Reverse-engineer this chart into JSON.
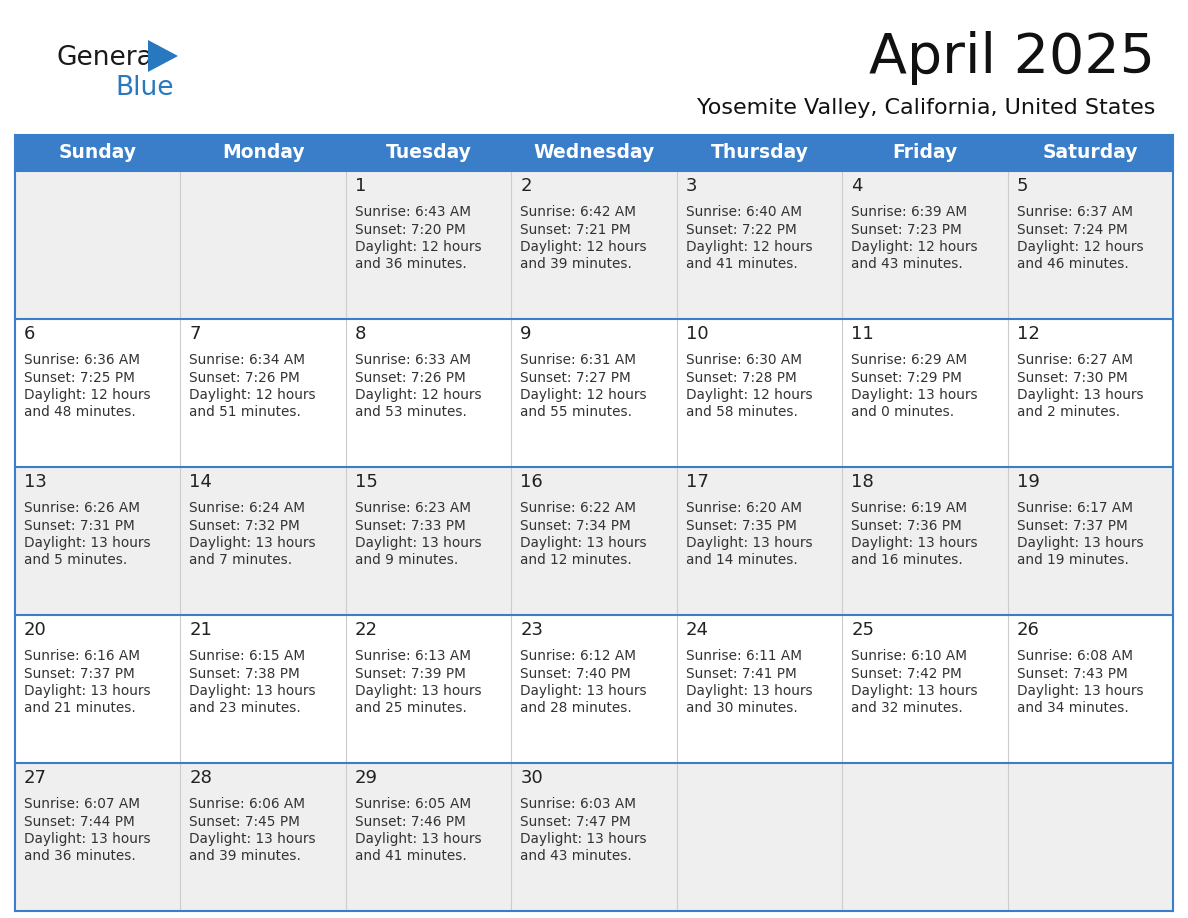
{
  "title": "April 2025",
  "subtitle": "Yosemite Valley, California, United States",
  "days_of_week": [
    "Sunday",
    "Monday",
    "Tuesday",
    "Wednesday",
    "Thursday",
    "Friday",
    "Saturday"
  ],
  "header_bg": "#3A7DC9",
  "header_text": "#FFFFFF",
  "row_bg_light": "#EFEFEF",
  "row_bg_white": "#FFFFFF",
  "day_num_color": "#222222",
  "info_color": "#333333",
  "border_color": "#3A7DC9",
  "sep_color": "#CCCCCC",
  "logo_general_color": "#1a1a1a",
  "logo_blue_color": "#2878C0",
  "logo_triangle_color": "#2878C0",
  "calendar": [
    [
      {
        "day": "",
        "sunrise": "",
        "sunset": "",
        "daylight": ""
      },
      {
        "day": "",
        "sunrise": "",
        "sunset": "",
        "daylight": ""
      },
      {
        "day": "1",
        "sunrise": "6:43 AM",
        "sunset": "7:20 PM",
        "daylight": "12 hours",
        "daylight2": "and 36 minutes."
      },
      {
        "day": "2",
        "sunrise": "6:42 AM",
        "sunset": "7:21 PM",
        "daylight": "12 hours",
        "daylight2": "and 39 minutes."
      },
      {
        "day": "3",
        "sunrise": "6:40 AM",
        "sunset": "7:22 PM",
        "daylight": "12 hours",
        "daylight2": "and 41 minutes."
      },
      {
        "day": "4",
        "sunrise": "6:39 AM",
        "sunset": "7:23 PM",
        "daylight": "12 hours",
        "daylight2": "and 43 minutes."
      },
      {
        "day": "5",
        "sunrise": "6:37 AM",
        "sunset": "7:24 PM",
        "daylight": "12 hours",
        "daylight2": "and 46 minutes."
      }
    ],
    [
      {
        "day": "6",
        "sunrise": "6:36 AM",
        "sunset": "7:25 PM",
        "daylight": "12 hours",
        "daylight2": "and 48 minutes."
      },
      {
        "day": "7",
        "sunrise": "6:34 AM",
        "sunset": "7:26 PM",
        "daylight": "12 hours",
        "daylight2": "and 51 minutes."
      },
      {
        "day": "8",
        "sunrise": "6:33 AM",
        "sunset": "7:26 PM",
        "daylight": "12 hours",
        "daylight2": "and 53 minutes."
      },
      {
        "day": "9",
        "sunrise": "6:31 AM",
        "sunset": "7:27 PM",
        "daylight": "12 hours",
        "daylight2": "and 55 minutes."
      },
      {
        "day": "10",
        "sunrise": "6:30 AM",
        "sunset": "7:28 PM",
        "daylight": "12 hours",
        "daylight2": "and 58 minutes."
      },
      {
        "day": "11",
        "sunrise": "6:29 AM",
        "sunset": "7:29 PM",
        "daylight": "13 hours",
        "daylight2": "and 0 minutes."
      },
      {
        "day": "12",
        "sunrise": "6:27 AM",
        "sunset": "7:30 PM",
        "daylight": "13 hours",
        "daylight2": "and 2 minutes."
      }
    ],
    [
      {
        "day": "13",
        "sunrise": "6:26 AM",
        "sunset": "7:31 PM",
        "daylight": "13 hours",
        "daylight2": "and 5 minutes."
      },
      {
        "day": "14",
        "sunrise": "6:24 AM",
        "sunset": "7:32 PM",
        "daylight": "13 hours",
        "daylight2": "and 7 minutes."
      },
      {
        "day": "15",
        "sunrise": "6:23 AM",
        "sunset": "7:33 PM",
        "daylight": "13 hours",
        "daylight2": "and 9 minutes."
      },
      {
        "day": "16",
        "sunrise": "6:22 AM",
        "sunset": "7:34 PM",
        "daylight": "13 hours",
        "daylight2": "and 12 minutes."
      },
      {
        "day": "17",
        "sunrise": "6:20 AM",
        "sunset": "7:35 PM",
        "daylight": "13 hours",
        "daylight2": "and 14 minutes."
      },
      {
        "day": "18",
        "sunrise": "6:19 AM",
        "sunset": "7:36 PM",
        "daylight": "13 hours",
        "daylight2": "and 16 minutes."
      },
      {
        "day": "19",
        "sunrise": "6:17 AM",
        "sunset": "7:37 PM",
        "daylight": "13 hours",
        "daylight2": "and 19 minutes."
      }
    ],
    [
      {
        "day": "20",
        "sunrise": "6:16 AM",
        "sunset": "7:37 PM",
        "daylight": "13 hours",
        "daylight2": "and 21 minutes."
      },
      {
        "day": "21",
        "sunrise": "6:15 AM",
        "sunset": "7:38 PM",
        "daylight": "13 hours",
        "daylight2": "and 23 minutes."
      },
      {
        "day": "22",
        "sunrise": "6:13 AM",
        "sunset": "7:39 PM",
        "daylight": "13 hours",
        "daylight2": "and 25 minutes."
      },
      {
        "day": "23",
        "sunrise": "6:12 AM",
        "sunset": "7:40 PM",
        "daylight": "13 hours",
        "daylight2": "and 28 minutes."
      },
      {
        "day": "24",
        "sunrise": "6:11 AM",
        "sunset": "7:41 PM",
        "daylight": "13 hours",
        "daylight2": "and 30 minutes."
      },
      {
        "day": "25",
        "sunrise": "6:10 AM",
        "sunset": "7:42 PM",
        "daylight": "13 hours",
        "daylight2": "and 32 minutes."
      },
      {
        "day": "26",
        "sunrise": "6:08 AM",
        "sunset": "7:43 PM",
        "daylight": "13 hours",
        "daylight2": "and 34 minutes."
      }
    ],
    [
      {
        "day": "27",
        "sunrise": "6:07 AM",
        "sunset": "7:44 PM",
        "daylight": "13 hours",
        "daylight2": "and 36 minutes."
      },
      {
        "day": "28",
        "sunrise": "6:06 AM",
        "sunset": "7:45 PM",
        "daylight": "13 hours",
        "daylight2": "and 39 minutes."
      },
      {
        "day": "29",
        "sunrise": "6:05 AM",
        "sunset": "7:46 PM",
        "daylight": "13 hours",
        "daylight2": "and 41 minutes."
      },
      {
        "day": "30",
        "sunrise": "6:03 AM",
        "sunset": "7:47 PM",
        "daylight": "13 hours",
        "daylight2": "and 43 minutes."
      },
      {
        "day": "",
        "sunrise": "",
        "sunset": "",
        "daylight": "",
        "daylight2": ""
      },
      {
        "day": "",
        "sunrise": "",
        "sunset": "",
        "daylight": "",
        "daylight2": ""
      },
      {
        "day": "",
        "sunrise": "",
        "sunset": "",
        "daylight": "",
        "daylight2": ""
      }
    ]
  ]
}
